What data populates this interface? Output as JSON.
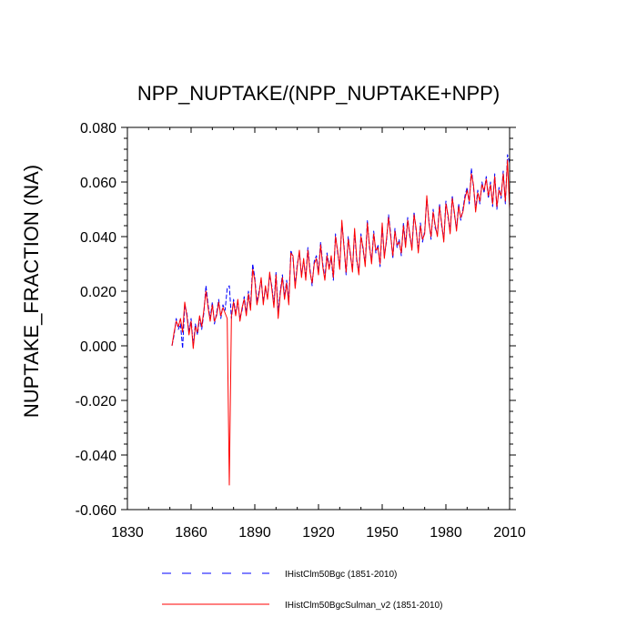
{
  "chart_data": {
    "type": "line",
    "title": "NPP_NUPTAKE/(NPP_NUPTAKE+NPP)",
    "xlabel": "",
    "ylabel": "NUPTAKE_FRACTION  (NA)",
    "xlim": [
      1830,
      2010
    ],
    "ylim": [
      -0.06,
      0.08
    ],
    "xticks": [
      1830,
      1860,
      1890,
      1920,
      1950,
      1980,
      2010
    ],
    "xtick_labels": [
      "1830",
      "1860",
      "1890",
      "1920",
      "1950",
      "1980",
      "2010"
    ],
    "yticks": [
      -0.06,
      -0.04,
      -0.02,
      0.0,
      0.02,
      0.04,
      0.06,
      0.08
    ],
    "ytick_labels": [
      "-0.060",
      "-0.040",
      "-0.020",
      "0.000",
      "0.020",
      "0.040",
      "0.060",
      "0.080"
    ],
    "grid": false,
    "legend_position": "bottom",
    "series": [
      {
        "name": "IHistClm50Bgc (1851-2010)",
        "color": "#0000ff",
        "style": "dashed",
        "x": [
          1851,
          1852,
          1853,
          1854,
          1855,
          1856,
          1857,
          1858,
          1859,
          1860,
          1861,
          1862,
          1863,
          1864,
          1865,
          1866,
          1867,
          1868,
          1869,
          1870,
          1871,
          1872,
          1873,
          1874,
          1875,
          1876,
          1877,
          1878,
          1879,
          1880,
          1881,
          1882,
          1883,
          1884,
          1885,
          1886,
          1887,
          1888,
          1889,
          1890,
          1891,
          1892,
          1893,
          1894,
          1895,
          1896,
          1897,
          1898,
          1899,
          1900,
          1901,
          1902,
          1903,
          1904,
          1905,
          1906,
          1907,
          1908,
          1909,
          1910,
          1911,
          1912,
          1913,
          1914,
          1915,
          1916,
          1917,
          1918,
          1919,
          1920,
          1921,
          1922,
          1923,
          1924,
          1925,
          1926,
          1927,
          1928,
          1929,
          1930,
          1931,
          1932,
          1933,
          1934,
          1935,
          1936,
          1937,
          1938,
          1939,
          1940,
          1941,
          1942,
          1943,
          1944,
          1945,
          1946,
          1947,
          1948,
          1949,
          1950,
          1951,
          1952,
          1953,
          1954,
          1955,
          1956,
          1957,
          1958,
          1959,
          1960,
          1961,
          1962,
          1963,
          1964,
          1965,
          1966,
          1967,
          1968,
          1969,
          1970,
          1971,
          1972,
          1973,
          1974,
          1975,
          1976,
          1977,
          1978,
          1979,
          1980,
          1981,
          1982,
          1983,
          1984,
          1985,
          1986,
          1987,
          1988,
          1989,
          1990,
          1991,
          1992,
          1993,
          1994,
          1995,
          1996,
          1997,
          1998,
          1999,
          2000,
          2001,
          2002,
          2003,
          2004,
          2005,
          2006,
          2007,
          2008,
          2009,
          2010
        ],
        "y": [
          0.0,
          0.004,
          0.01,
          0.006,
          0.008,
          -0.001,
          0.015,
          0.012,
          0.005,
          0.01,
          0.0,
          0.008,
          0.004,
          0.01,
          0.006,
          0.012,
          0.022,
          0.015,
          0.01,
          0.016,
          0.008,
          0.012,
          0.017,
          0.01,
          0.015,
          0.013,
          0.021,
          0.022,
          0.01,
          0.017,
          0.012,
          0.016,
          0.01,
          0.013,
          0.018,
          0.012,
          0.02,
          0.014,
          0.03,
          0.025,
          0.016,
          0.02,
          0.024,
          0.016,
          0.021,
          0.018,
          0.026,
          0.022,
          0.015,
          0.027,
          0.012,
          0.02,
          0.026,
          0.018,
          0.024,
          0.016,
          0.035,
          0.032,
          0.022,
          0.03,
          0.034,
          0.026,
          0.031,
          0.025,
          0.036,
          0.028,
          0.022,
          0.031,
          0.033,
          0.027,
          0.038,
          0.03,
          0.025,
          0.034,
          0.029,
          0.032,
          0.024,
          0.041,
          0.034,
          0.029,
          0.045,
          0.037,
          0.026,
          0.04,
          0.033,
          0.028,
          0.042,
          0.031,
          0.027,
          0.041,
          0.035,
          0.03,
          0.046,
          0.036,
          0.031,
          0.042,
          0.034,
          0.037,
          0.029,
          0.044,
          0.033,
          0.038,
          0.048,
          0.041,
          0.032,
          0.043,
          0.036,
          0.039,
          0.033,
          0.045,
          0.037,
          0.047,
          0.04,
          0.036,
          0.049,
          0.042,
          0.035,
          0.045,
          0.038,
          0.042,
          0.054,
          0.046,
          0.039,
          0.05,
          0.043,
          0.041,
          0.052,
          0.044,
          0.039,
          0.053,
          0.047,
          0.042,
          0.055,
          0.048,
          0.043,
          0.052,
          0.046,
          0.05,
          0.055,
          0.058,
          0.052,
          0.065,
          0.058,
          0.05,
          0.057,
          0.052,
          0.06,
          0.056,
          0.062,
          0.054,
          0.06,
          0.051,
          0.063,
          0.05,
          0.058,
          0.054,
          0.064,
          0.052,
          0.07,
          0.067
        ]
      },
      {
        "name": "IHistClm50BgcSulman_v2 (1851-2010)",
        "color": "#ff0000",
        "style": "solid",
        "x": [
          1851,
          1852,
          1853,
          1854,
          1855,
          1856,
          1857,
          1858,
          1859,
          1860,
          1861,
          1862,
          1863,
          1864,
          1865,
          1866,
          1867,
          1868,
          1869,
          1870,
          1871,
          1872,
          1873,
          1874,
          1875,
          1876,
          1877,
          1878,
          1879,
          1880,
          1881,
          1882,
          1883,
          1884,
          1885,
          1886,
          1887,
          1888,
          1889,
          1890,
          1891,
          1892,
          1893,
          1894,
          1895,
          1896,
          1897,
          1898,
          1899,
          1900,
          1901,
          1902,
          1903,
          1904,
          1905,
          1906,
          1907,
          1908,
          1909,
          1910,
          1911,
          1912,
          1913,
          1914,
          1915,
          1916,
          1917,
          1918,
          1919,
          1920,
          1921,
          1922,
          1923,
          1924,
          1925,
          1926,
          1927,
          1928,
          1929,
          1930,
          1931,
          1932,
          1933,
          1934,
          1935,
          1936,
          1937,
          1938,
          1939,
          1940,
          1941,
          1942,
          1943,
          1944,
          1945,
          1946,
          1947,
          1948,
          1949,
          1950,
          1951,
          1952,
          1953,
          1954,
          1955,
          1956,
          1957,
          1958,
          1959,
          1960,
          1961,
          1962,
          1963,
          1964,
          1965,
          1966,
          1967,
          1968,
          1969,
          1970,
          1971,
          1972,
          1973,
          1974,
          1975,
          1976,
          1977,
          1978,
          1979,
          1980,
          1981,
          1982,
          1983,
          1984,
          1985,
          1986,
          1987,
          1988,
          1989,
          1990,
          1991,
          1992,
          1993,
          1994,
          1995,
          1996,
          1997,
          1998,
          1999,
          2000,
          2001,
          2002,
          2003,
          2004,
          2005,
          2006,
          2007,
          2008,
          2009,
          2010
        ],
        "y": [
          0.0,
          0.005,
          0.009,
          0.007,
          0.01,
          0.005,
          0.016,
          0.011,
          0.004,
          0.009,
          -0.001,
          0.007,
          0.005,
          0.011,
          0.007,
          0.013,
          0.02,
          0.014,
          0.009,
          0.015,
          0.009,
          0.011,
          0.016,
          0.011,
          0.014,
          0.012,
          0.01,
          -0.051,
          0.011,
          0.016,
          0.011,
          0.017,
          0.009,
          0.014,
          0.017,
          0.011,
          0.019,
          0.013,
          0.028,
          0.024,
          0.015,
          0.019,
          0.025,
          0.015,
          0.022,
          0.017,
          0.027,
          0.021,
          0.014,
          0.026,
          0.01,
          0.019,
          0.025,
          0.017,
          0.023,
          0.015,
          0.034,
          0.033,
          0.021,
          0.029,
          0.035,
          0.025,
          0.032,
          0.024,
          0.035,
          0.027,
          0.023,
          0.03,
          0.032,
          0.026,
          0.037,
          0.029,
          0.024,
          0.033,
          0.028,
          0.033,
          0.025,
          0.04,
          0.035,
          0.028,
          0.046,
          0.036,
          0.027,
          0.039,
          0.034,
          0.027,
          0.043,
          0.032,
          0.026,
          0.04,
          0.036,
          0.029,
          0.045,
          0.037,
          0.03,
          0.041,
          0.035,
          0.036,
          0.03,
          0.045,
          0.032,
          0.039,
          0.047,
          0.04,
          0.033,
          0.042,
          0.037,
          0.038,
          0.034,
          0.044,
          0.036,
          0.046,
          0.041,
          0.035,
          0.048,
          0.043,
          0.034,
          0.044,
          0.039,
          0.041,
          0.055,
          0.045,
          0.04,
          0.049,
          0.044,
          0.04,
          0.051,
          0.045,
          0.038,
          0.052,
          0.048,
          0.041,
          0.054,
          0.049,
          0.042,
          0.051,
          0.047,
          0.049,
          0.054,
          0.057,
          0.053,
          0.063,
          0.059,
          0.049,
          0.056,
          0.053,
          0.059,
          0.057,
          0.061,
          0.055,
          0.059,
          0.052,
          0.062,
          0.051,
          0.057,
          0.055,
          0.063,
          0.053,
          0.068,
          0.05
        ]
      }
    ]
  }
}
